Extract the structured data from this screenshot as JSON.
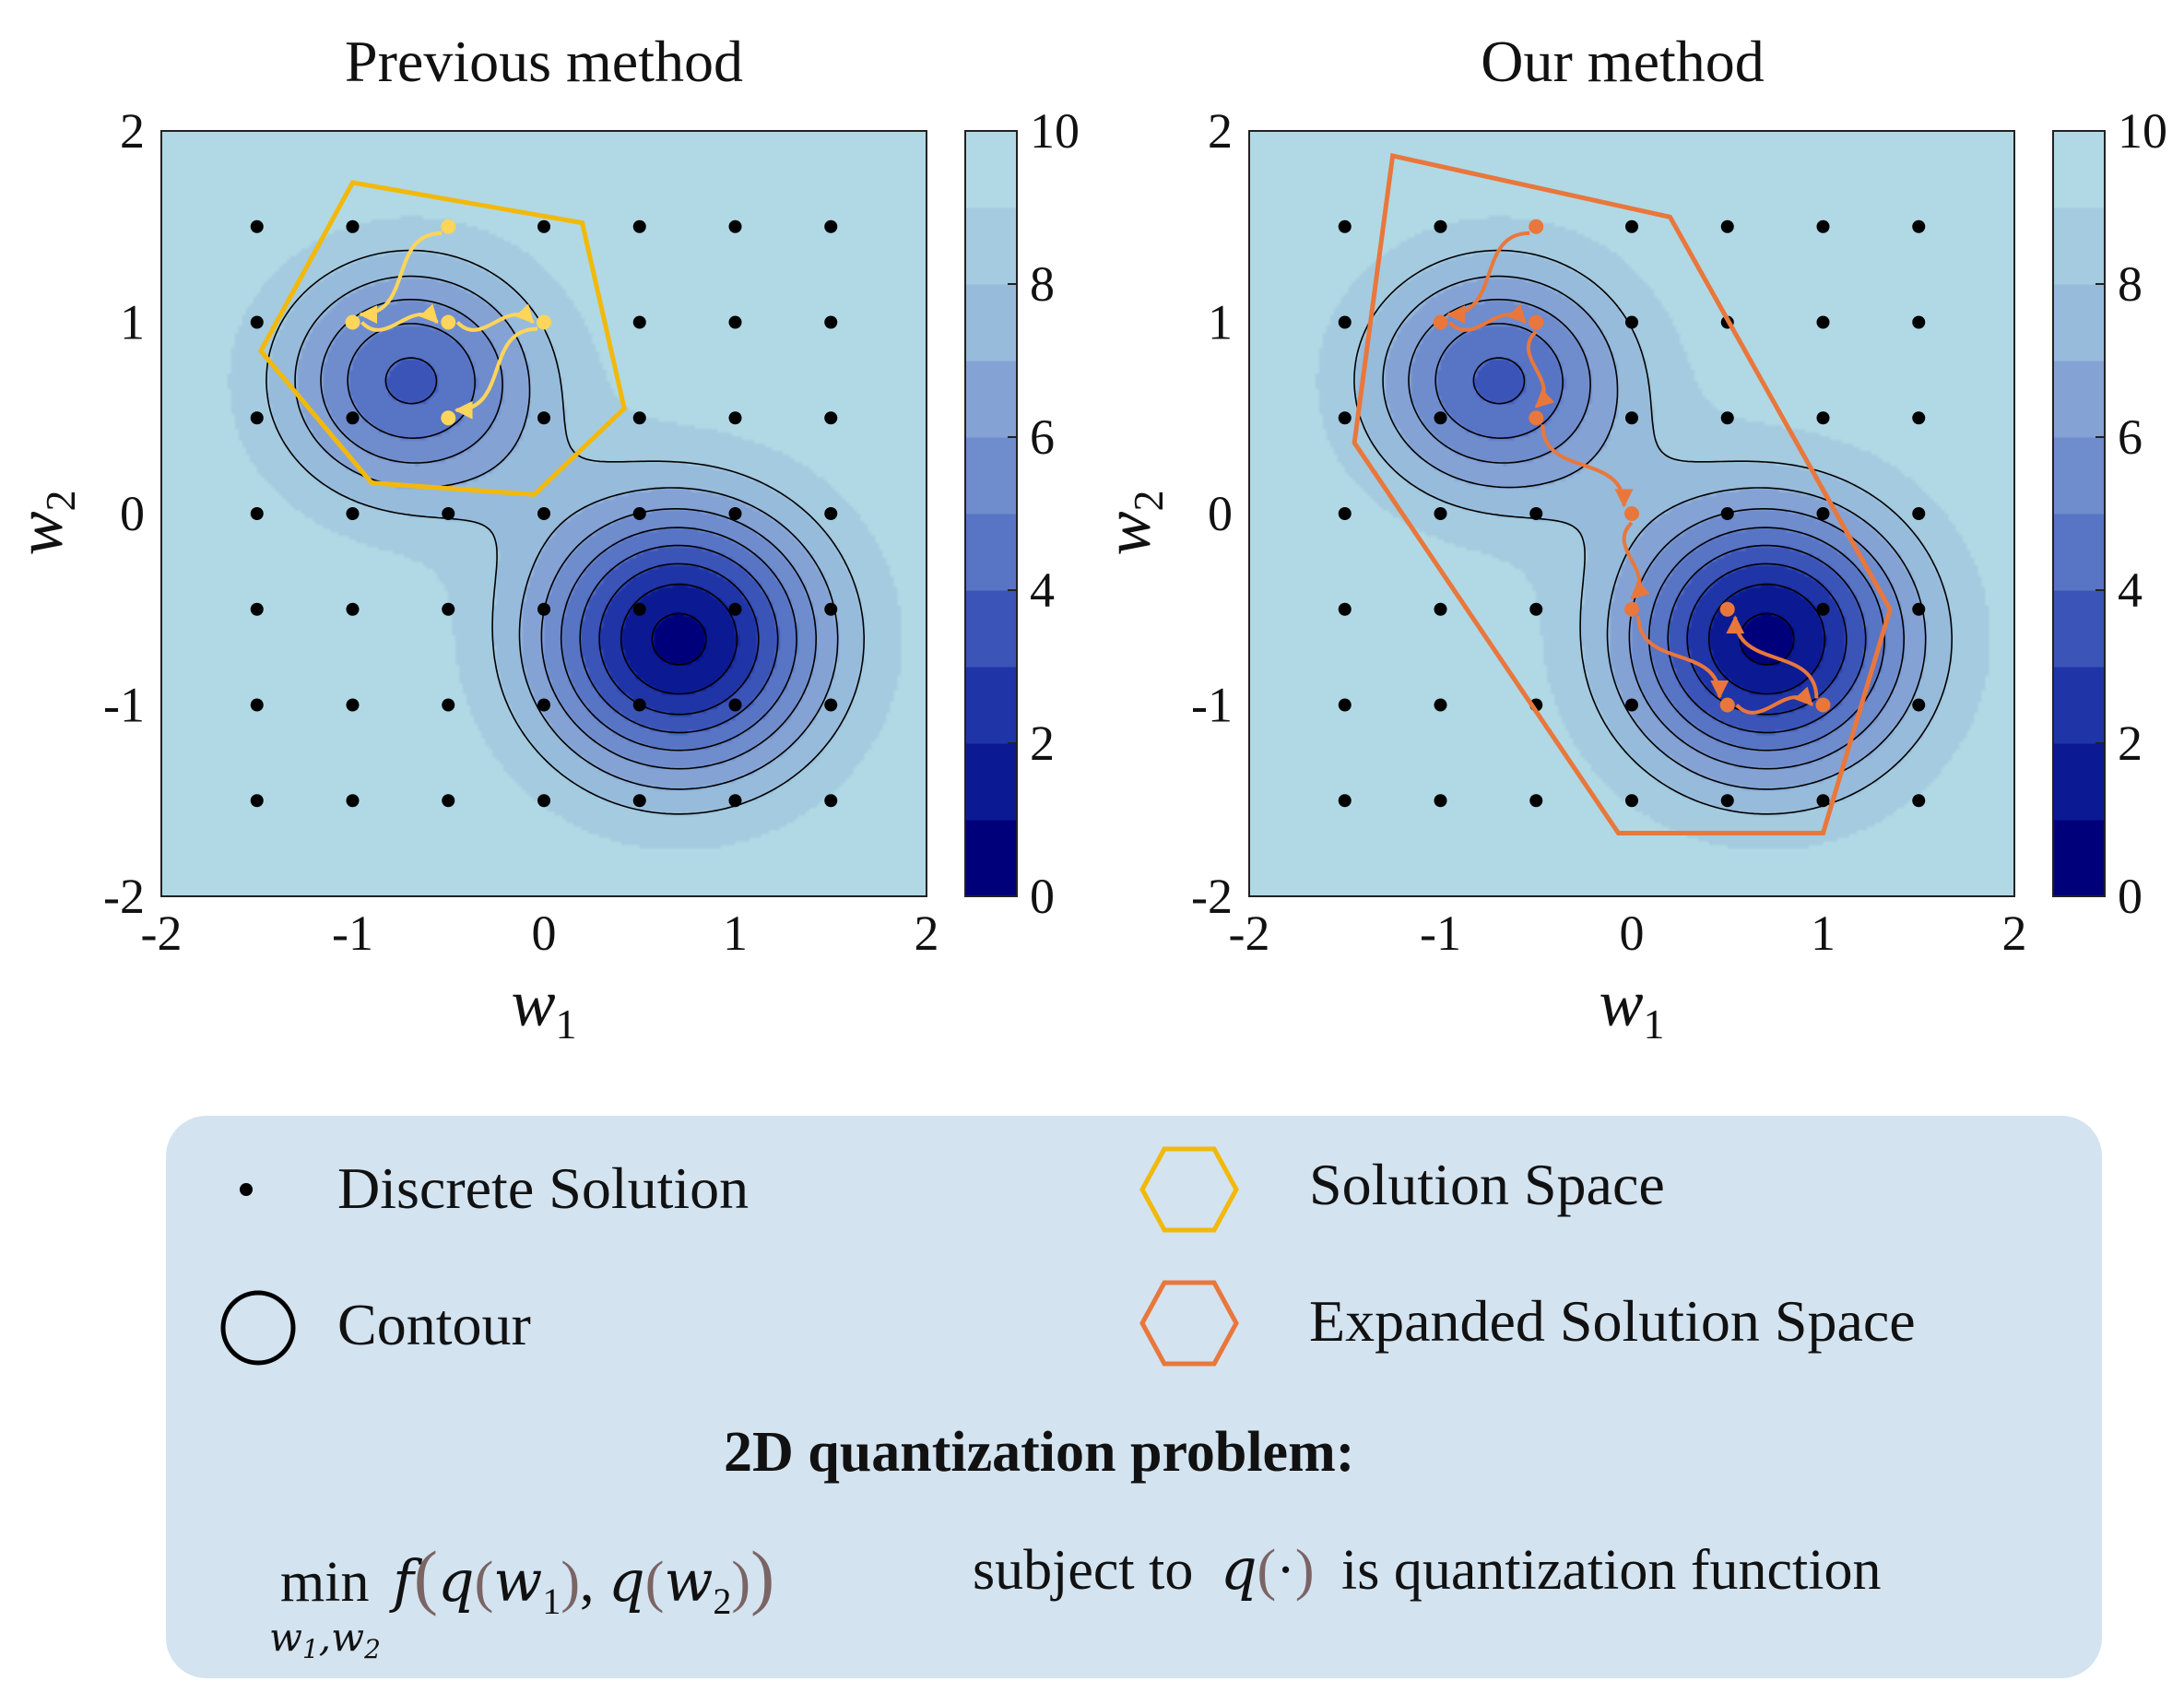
{
  "chart_data": [
    {
      "type": "contour",
      "title": "Previous method",
      "xlabel": "w",
      "xlabel_sub": "1",
      "ylabel": "w",
      "ylabel_sub": "2",
      "xlim": [
        -2,
        2
      ],
      "ylim": [
        -2,
        2
      ],
      "xticks": [
        "-2",
        "-1",
        "0",
        "1",
        "2"
      ],
      "yticks": [
        "-2",
        "-1",
        "0",
        "1",
        "2"
      ],
      "colorbar": {
        "range": [
          0,
          10
        ],
        "ticks": [
          "0",
          "2",
          "4",
          "6",
          "8",
          "10"
        ]
      },
      "surface": {
        "minima": [
          [
            -0.7,
            0.7
          ],
          [
            0.7,
            -0.65
          ]
        ],
        "contour_levels": [
          1,
          2,
          3,
          4,
          5,
          6,
          7,
          8
        ]
      },
      "grid_points": {
        "x": [
          -1.5,
          -1,
          -0.5,
          0,
          0.5,
          1,
          1.5
        ],
        "y": [
          -1.5,
          -1,
          -0.5,
          0,
          0.5,
          1,
          1.5
        ]
      },
      "region_name": "Solution Space",
      "region_color": "#f2b90c",
      "region_polygon": [
        [
          -1,
          1.73
        ],
        [
          0.2,
          1.52
        ],
        [
          0.42,
          0.55
        ],
        [
          -0.05,
          0.1
        ],
        [
          -0.9,
          0.16
        ],
        [
          -1.48,
          0.85
        ]
      ],
      "path_color": "#ffd55a",
      "path_nodes": [
        [
          -0.5,
          1.5
        ],
        [
          -1,
          1
        ],
        [
          -0.5,
          1
        ],
        [
          0,
          1
        ],
        [
          -0.5,
          0.5
        ]
      ],
      "path_arrows": [
        [
          [
            -0.5,
            1.5
          ],
          [
            -1,
            1
          ]
        ],
        [
          [
            -1,
            1
          ],
          [
            -0.5,
            1
          ]
        ],
        [
          [
            -0.5,
            1
          ],
          [
            0,
            1
          ]
        ],
        [
          [
            0,
            1
          ],
          [
            -0.5,
            0.5
          ]
        ]
      ]
    },
    {
      "type": "contour",
      "title": "Our method",
      "xlabel": "w",
      "xlabel_sub": "1",
      "ylabel": "w",
      "ylabel_sub": "2",
      "xlim": [
        -2,
        2
      ],
      "ylim": [
        -2,
        2
      ],
      "xticks": [
        "-2",
        "-1",
        "0",
        "1",
        "2"
      ],
      "yticks": [
        "-2",
        "-1",
        "0",
        "1",
        "2"
      ],
      "colorbar": {
        "range": [
          0,
          10
        ],
        "ticks": [
          "0",
          "2",
          "4",
          "6",
          "8",
          "10"
        ]
      },
      "surface": {
        "minima": [
          [
            -0.7,
            0.7
          ],
          [
            0.7,
            -0.65
          ]
        ],
        "contour_levels": [
          1,
          2,
          3,
          4,
          5,
          6,
          7,
          8
        ]
      },
      "grid_points": {
        "x": [
          -1.5,
          -1,
          -0.5,
          0,
          0.5,
          1,
          1.5
        ],
        "y": [
          -1.5,
          -1,
          -0.5,
          0,
          0.5,
          1,
          1.5
        ]
      },
      "region_name": "Expanded Solution Space",
      "region_color": "#e9773c",
      "region_polygon": [
        [
          -1.25,
          1.87
        ],
        [
          0.2,
          1.55
        ],
        [
          1.35,
          -0.5
        ],
        [
          1.0,
          -1.67
        ],
        [
          -0.07,
          -1.67
        ],
        [
          -1.45,
          0.37
        ]
      ],
      "path_color": "#e9773c",
      "path_nodes": [
        [
          -0.5,
          1.5
        ],
        [
          -1,
          1
        ],
        [
          -0.5,
          1
        ],
        [
          -0.5,
          0.5
        ],
        [
          0,
          0
        ],
        [
          0,
          -0.5
        ],
        [
          0.5,
          -1
        ],
        [
          1,
          -1
        ],
        [
          0.5,
          -0.5
        ]
      ],
      "path_arrows": [
        [
          [
            -0.5,
            1.5
          ],
          [
            -1,
            1
          ]
        ],
        [
          [
            -1,
            1
          ],
          [
            -0.5,
            1
          ]
        ],
        [
          [
            -0.5,
            1
          ],
          [
            -0.5,
            0.5
          ]
        ],
        [
          [
            -0.5,
            0.5
          ],
          [
            0,
            0
          ]
        ],
        [
          [
            0,
            0
          ],
          [
            0,
            -0.5
          ]
        ],
        [
          [
            0,
            -0.5
          ],
          [
            0.5,
            -1
          ]
        ],
        [
          [
            0.5,
            -1
          ],
          [
            1,
            -1
          ]
        ],
        [
          [
            1,
            -1
          ],
          [
            0.5,
            -0.5
          ]
        ]
      ]
    }
  ],
  "colors": {
    "colormap": [
      "#00007a",
      "#0b1a93",
      "#1f34a7",
      "#3b54b8",
      "#5874c4",
      "#6f8ccd",
      "#84a3d4",
      "#97bbdb",
      "#a4cbdf",
      "#b0d9e5"
    ],
    "background": "#99bdd9",
    "legend_background": "#d3e3f0",
    "discrete_dot": "#000000"
  },
  "legend": {
    "discrete_solution": "Discrete Solution",
    "contour": "Contour",
    "solution_space": "Solution Space",
    "expanded_solution_space": "Expanded Solution Space"
  },
  "problem": {
    "title": "2D quantization problem:",
    "min": "min",
    "min_sub": "w",
    "min_sub_1": "1",
    "min_sub_sep": ",w",
    "min_sub_2": "2",
    "f": "f",
    "q": "q",
    "w": "w",
    "sub_1": "1",
    "sub_2": "2",
    "subject_to": "subject to",
    "dot": "·",
    "tail": "is quantization function"
  }
}
